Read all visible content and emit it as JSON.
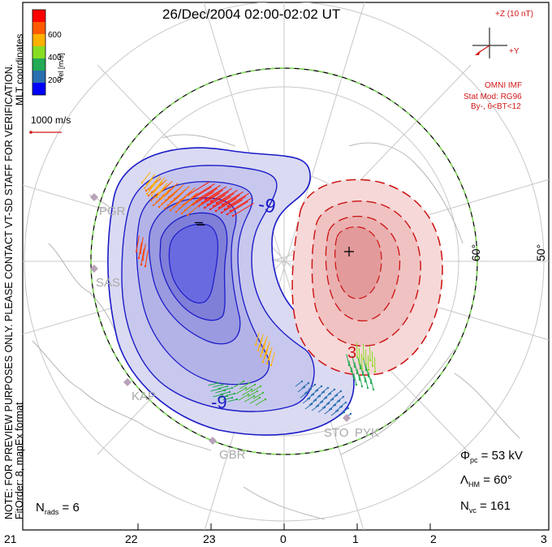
{
  "title": "26/Dec/2004 02:00-02:02 UT",
  "side_notes": {
    "preview_note": "NOTE: FOR PREVIEW PURPOSES ONLY. PLEASE CONTACT VT-SD STAFF FOR VERIFICATION.",
    "fit_order": "FitOrder: 8, mapEx format",
    "coords": "MLT coordinates"
  },
  "colorbar": {
    "axis_label": "Vel [m/s]",
    "ticks": [
      "600",
      "400",
      "200"
    ],
    "colors": [
      "#ff0000",
      "#ff5a00",
      "#ffb000",
      "#88dd22",
      "#22aa55",
      "#2a6fb0",
      "#0000ff"
    ]
  },
  "vector_scale": {
    "label": "1000 m/s"
  },
  "imf": {
    "z_label": "+Z (10 nT)",
    "y_label": "+Y",
    "source": "OMNI IMF",
    "model": "Stat Mod: RG96",
    "condition": "By-, 6<BT<12"
  },
  "latitude_labels": [
    "60°",
    "50°"
  ],
  "cells": {
    "dusk_sign": "–",
    "dawn_sign": "+",
    "dusk_contour_label": "-9",
    "dusk_contour_label_bottom": "-9",
    "dawn_contour_label": "3"
  },
  "stations": [
    "PGR",
    "SAS",
    "KAP",
    "GBR",
    "STO",
    "PYK"
  ],
  "stats": {
    "phi_pc": "= 53 kV",
    "lambda_hm": "= 60°",
    "n_vc": "= 161",
    "n_rads": "= 6"
  },
  "mlt_ticks": [
    "21",
    "22",
    "23",
    "0",
    "1",
    "2",
    "3"
  ],
  "colors": {
    "negative_cell": "#2b2bd6",
    "positive_cell": "#d42020",
    "boundary_dash": "#7ed957"
  }
}
